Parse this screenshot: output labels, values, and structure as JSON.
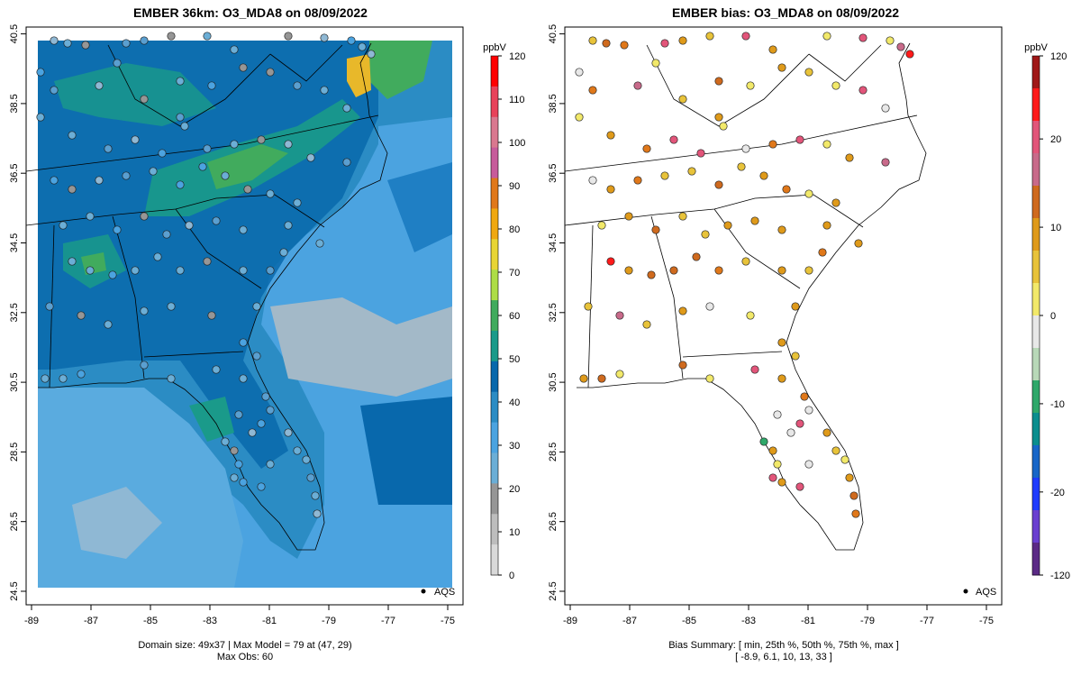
{
  "left_panel": {
    "title": "EMBER 36km: O3_MDA8 on 08/09/2022",
    "legend_label": "AQS",
    "footer_line1": "Domain size: 49x37 | Max Model = 79 at (47, 29)",
    "footer_line2": "Max Obs: 60",
    "colorbar": {
      "unit": "ppbV",
      "ticks": [
        "0",
        "10",
        "20",
        "30",
        "40",
        "50",
        "60",
        "70",
        "80",
        "90",
        "100",
        "110",
        "120"
      ],
      "colors": [
        "#d9d9d9",
        "#bdbdbd",
        "#969696",
        "#6baed6",
        "#4ba3e0",
        "#2b8cc4",
        "#0868ac",
        "#1a9a8a",
        "#41ab5d",
        "#addd46",
        "#e8d534",
        "#f0a810",
        "#e0781a",
        "#c75b9b",
        "#d9788f",
        "#e8425a",
        "#ff0000"
      ]
    },
    "description_values": {
      "max_model": 79,
      "max_obs": 60
    }
  },
  "right_panel": {
    "title": "EMBER bias: O3_MDA8 on 08/09/2022",
    "legend_label": "AQS",
    "footer_line1": "Bias Summary: [ min, 25th %, 50th %, 75th %, max ]",
    "footer_line2": "[ -8.9,   6.1,   10,   13,   33 ]",
    "colorbar": {
      "unit": "ppbV",
      "ticks": [
        "-120",
        "-20",
        "-10",
        "0",
        "10",
        "20",
        "120"
      ],
      "colors": [
        "#5b2a86",
        "#6a3fd0",
        "#1f3bff",
        "#1866c8",
        "#0b8e8e",
        "#2fa86a",
        "#b8d8b8",
        "#e8e8e8",
        "#f2e96a",
        "#e8c33a",
        "#df9a1a",
        "#cf6a1e",
        "#c86a8a",
        "#e2557a",
        "#ff1a1a",
        "#a01818"
      ]
    },
    "bias_summary": {
      "min": -8.9,
      "p25": 6.1,
      "median": 10,
      "p75": 13,
      "max": 33
    }
  },
  "axes": {
    "lon_ticks": [
      "-89",
      "-87",
      "-85",
      "-83",
      "-81",
      "-79",
      "-77",
      "-75"
    ],
    "lat_ticks": [
      "24.5",
      "26.5",
      "28.5",
      "30.5",
      "32.5",
      "34.5",
      "36.5",
      "38.5",
      "40.5"
    ]
  },
  "colors": {
    "ocean_model": "#4ba3e0",
    "land_model": "#2b8cc4",
    "ozone_high": "#41ab5d",
    "ozone_peak": "#e8d534",
    "obs_default": "#6baed6",
    "bias_default": "#df9a1a"
  }
}
